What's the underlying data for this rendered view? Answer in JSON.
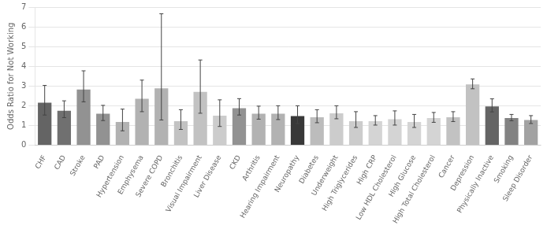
{
  "chart_data": {
    "type": "bar",
    "categories": [
      "CHF",
      "CAD",
      "Stroke",
      "PAD",
      "Hypertension",
      "Emphysema",
      "Severe COPD",
      "Bronchitis",
      "Visual Impairment",
      "Liver Disease",
      "CKD",
      "Arthritis",
      "Hearing Impairment",
      "Neuropathy",
      "Diabetes",
      "Underweight",
      "High Triglycerides",
      "High CRP",
      "Low HDL Cholesterol",
      "High Glucose",
      "High Total Cholesterol",
      "Cancer",
      "Depression",
      "Physically Inactive",
      "Smoking",
      "Sleep Disorder"
    ],
    "values": [
      2.15,
      1.75,
      2.82,
      1.6,
      1.18,
      2.35,
      2.88,
      1.22,
      2.7,
      1.5,
      1.88,
      1.6,
      1.6,
      1.48,
      1.42,
      1.62,
      1.22,
      1.22,
      1.32,
      1.18,
      1.38,
      1.42,
      3.08,
      1.97,
      1.38,
      1.28
    ],
    "errors_upper": [
      0.88,
      0.5,
      0.95,
      0.42,
      0.65,
      0.95,
      3.78,
      0.58,
      1.62,
      0.8,
      0.48,
      0.38,
      0.4,
      0.52,
      0.38,
      0.38,
      0.48,
      0.28,
      0.42,
      0.38,
      0.28,
      0.28,
      0.28,
      0.38,
      0.18,
      0.22
    ],
    "errors_lower": [
      0.62,
      0.35,
      0.62,
      0.35,
      0.45,
      0.65,
      1.6,
      0.42,
      1.08,
      0.55,
      0.35,
      0.28,
      0.3,
      0.38,
      0.28,
      0.28,
      0.32,
      0.2,
      0.3,
      0.28,
      0.22,
      0.22,
      0.22,
      0.28,
      0.14,
      0.18
    ],
    "colors": [
      "#646464",
      "#707070",
      "#929292",
      "#929292",
      "#b2b2b2",
      "#b2b2b2",
      "#b2b2b2",
      "#c2c2c2",
      "#c2c2c2",
      "#cccccc",
      "#929292",
      "#b2b2b2",
      "#b2b2b2",
      "#383838",
      "#bcbcbc",
      "#cccccc",
      "#cccccc",
      "#d4d4d4",
      "#d4d4d4",
      "#d4d4d4",
      "#d4d4d4",
      "#c2c2c2",
      "#c2c2c2",
      "#646464",
      "#828282",
      "#a2a2a2"
    ],
    "ylabel": "Odds Ratio for Not Working",
    "ylim": [
      0,
      7
    ],
    "yticks": [
      0,
      1,
      2,
      3,
      4,
      5,
      6,
      7
    ],
    "grid": true
  }
}
